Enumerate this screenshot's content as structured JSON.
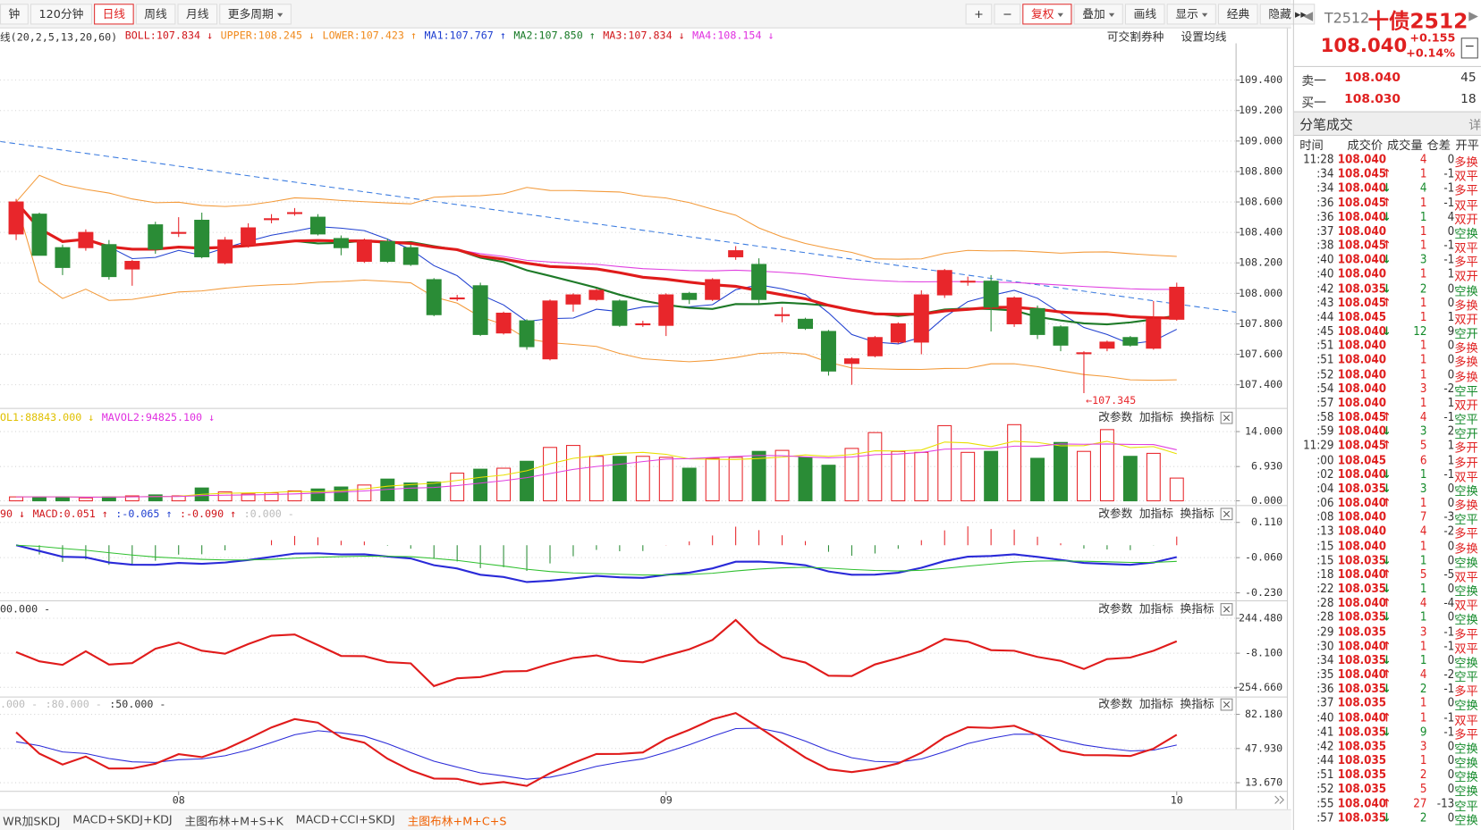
{
  "toolbar": {
    "left": [
      {
        "label": "钟"
      },
      {
        "label": "120分钟"
      },
      {
        "label": "日线",
        "active": true
      },
      {
        "label": "周线"
      },
      {
        "label": "月线"
      },
      {
        "label": "更多周期",
        "menu": true
      }
    ],
    "right": [
      {
        "label": "+"
      },
      {
        "label": "−"
      },
      {
        "label": "复权",
        "menu": true,
        "active": true
      },
      {
        "label": "叠加",
        "menu": true
      },
      {
        "label": "画线"
      },
      {
        "label": "显示",
        "menu": true
      },
      {
        "label": "经典"
      },
      {
        "label": "隐藏 ▸▸"
      }
    ]
  },
  "info": {
    "items": [
      {
        "text": "线(20,2,5,13,20,60)",
        "color": "#333333"
      },
      {
        "text": "BOLL:107.834 ↓",
        "color": "#d0161b"
      },
      {
        "text": "UPPER:108.245 ↓",
        "color": "#f08a1c"
      },
      {
        "text": "LOWER:107.423 ↑",
        "color": "#f08a1c"
      },
      {
        "text": "MA1:107.767 ↑",
        "color": "#1f3fd0"
      },
      {
        "text": "MA2:107.850 ↑",
        "color": "#177a26"
      },
      {
        "text": "MA3:107.834 ↓",
        "color": "#d0161b"
      },
      {
        "text": "MA4:108.154 ↓",
        "color": "#e030e0"
      }
    ],
    "right": [
      "可交割券种",
      "设置均线"
    ]
  },
  "chart_data": {
    "type": "candlestick",
    "ylim": [
      107.251,
      109.641
    ],
    "yticks": [
      {
        "value": 107.4,
        "label": "107.400"
      },
      {
        "value": 107.6,
        "label": "107.600"
      },
      {
        "value": 107.8,
        "label": "107.800"
      },
      {
        "value": 108.0,
        "label": "108.000"
      },
      {
        "value": 108.2,
        "label": "108.200"
      },
      {
        "value": 108.4,
        "label": "108.400"
      },
      {
        "value": 108.6,
        "label": "108.600"
      },
      {
        "value": 108.8,
        "label": "108.800"
      },
      {
        "value": 109.0,
        "label": "109.000"
      },
      {
        "value": 109.2,
        "label": "109.200"
      },
      {
        "value": 109.4,
        "label": "109.400"
      }
    ],
    "candles": [
      [
        108.39,
        108.62,
        108.35,
        108.6
      ],
      [
        108.52,
        108.53,
        108.25,
        108.25
      ],
      [
        108.3,
        108.32,
        108.12,
        108.17
      ],
      [
        108.3,
        108.42,
        108.28,
        108.4
      ],
      [
        108.32,
        108.35,
        108.09,
        108.11
      ],
      [
        108.16,
        108.22,
        108.05,
        108.21
      ],
      [
        108.45,
        108.47,
        108.26,
        108.29
      ],
      [
        108.4,
        108.5,
        108.37,
        108.4
      ],
      [
        108.48,
        108.53,
        108.23,
        108.24
      ],
      [
        108.2,
        108.37,
        108.19,
        108.35
      ],
      [
        108.32,
        108.46,
        108.3,
        108.43
      ],
      [
        108.49,
        108.52,
        108.46,
        108.49
      ],
      [
        108.53,
        108.56,
        108.51,
        108.53
      ],
      [
        108.5,
        108.52,
        108.38,
        108.39
      ],
      [
        108.36,
        108.38,
        108.25,
        108.3
      ],
      [
        108.21,
        108.36,
        108.2,
        108.35
      ],
      [
        108.34,
        108.36,
        108.2,
        108.21
      ],
      [
        108.3,
        108.32,
        108.18,
        108.19
      ],
      [
        108.09,
        108.1,
        107.85,
        107.86
      ],
      [
        107.97,
        107.99,
        107.95,
        107.97
      ],
      [
        108.05,
        108.07,
        107.72,
        107.73
      ],
      [
        107.74,
        107.88,
        107.73,
        107.87
      ],
      [
        107.82,
        107.83,
        107.63,
        107.65
      ],
      [
        107.57,
        107.96,
        107.56,
        107.95
      ],
      [
        107.93,
        108.0,
        107.88,
        107.99
      ],
      [
        107.96,
        108.03,
        107.95,
        108.02
      ],
      [
        107.95,
        107.96,
        107.78,
        107.79
      ],
      [
        107.8,
        107.82,
        107.78,
        107.8
      ],
      [
        107.79,
        108.0,
        107.72,
        107.99
      ],
      [
        108.0,
        108.01,
        107.93,
        107.96
      ],
      [
        107.96,
        108.1,
        107.95,
        108.09
      ],
      [
        108.24,
        108.31,
        108.22,
        108.28
      ],
      [
        108.19,
        108.23,
        107.93,
        107.96
      ],
      [
        107.86,
        107.91,
        107.81,
        107.86
      ],
      [
        107.83,
        107.84,
        107.76,
        107.77
      ],
      [
        107.75,
        107.76,
        107.46,
        107.49
      ],
      [
        107.54,
        107.58,
        107.4,
        107.57
      ],
      [
        107.59,
        107.72,
        107.58,
        107.71
      ],
      [
        107.68,
        107.81,
        107.67,
        107.8
      ],
      [
        107.68,
        108.02,
        107.6,
        107.99
      ],
      [
        107.99,
        108.16,
        107.97,
        108.15
      ],
      [
        108.08,
        108.11,
        108.05,
        108.08
      ],
      [
        108.08,
        108.12,
        107.75,
        107.91
      ],
      [
        107.8,
        107.98,
        107.78,
        107.97
      ],
      [
        107.9,
        107.92,
        107.7,
        107.73
      ],
      [
        107.78,
        107.79,
        107.62,
        107.66
      ],
      [
        107.61,
        107.62,
        107.345,
        107.61
      ],
      [
        107.64,
        107.69,
        107.62,
        107.68
      ],
      [
        107.71,
        107.72,
        107.65,
        107.66
      ],
      [
        107.64,
        107.95,
        107.63,
        107.83
      ],
      [
        107.83,
        108.07,
        107.82,
        108.04
      ]
    ],
    "up_color": "#e8262b",
    "down_color": "#2a8c36",
    "annotation": {
      "index": 46,
      "text": "←107.345"
    },
    "xticks": [
      {
        "value": 7,
        "label": "08"
      },
      {
        "value": 28,
        "label": "09"
      },
      {
        "value": 50,
        "label": "10"
      }
    ],
    "pane_buttons": [
      "改参数",
      "加指标",
      "换指标"
    ],
    "volume": {
      "header": [
        {
          "text": "OL1:88843.000 ↓",
          "color": "#e0c000"
        },
        {
          "text": "MAVOL2:94825.100 ↓",
          "color": "#e030e0"
        }
      ],
      "ylim": [
        0,
        18.5
      ],
      "yticks": [
        {
          "value": 0,
          "label": "0.000"
        },
        {
          "value": 6.93,
          "label": "6.930"
        },
        {
          "value": 14,
          "label": "14.000"
        }
      ],
      "values": [
        0.8,
        0.8,
        0.8,
        0.6,
        0.8,
        1,
        1.2,
        1,
        2.6,
        1.8,
        1.4,
        1.6,
        2,
        2.4,
        2.8,
        3.2,
        4.4,
        3.6,
        3.8,
        5.6,
        6.4,
        6.6,
        8,
        10.8,
        11.2,
        9,
        9,
        9,
        8.8,
        6.6,
        8.6,
        8.8,
        10,
        10.2,
        8.8,
        7.2,
        10.6,
        13.8,
        10,
        9.8,
        15.2,
        9.8,
        10,
        15.4,
        8.6,
        11.8,
        10,
        14.4,
        9,
        9.6,
        4.6
      ]
    },
    "macd": {
      "header": [
        {
          "text": "90 ↓",
          "color": "#d0161b"
        },
        {
          "text": "MACD:0.051 ↑",
          "color": "#d0161b"
        },
        {
          "text": ":-0.065 ↑",
          "color": "#1f3fd0"
        },
        {
          "text": ":-0.090 ↑",
          "color": "#d0161b"
        },
        {
          "text": ":0.000 -",
          "color": "#bbbbbb"
        }
      ],
      "ylim": [
        -0.264,
        0.187
      ],
      "yticks": [
        {
          "value": -0.23,
          "label": "-0.230"
        },
        {
          "value": -0.06,
          "label": "-0.060"
        },
        {
          "value": 0.11,
          "label": "0.110"
        }
      ]
    },
    "cci": {
      "header": [
        {
          "text": "00.000 -",
          "color": "#333333"
        }
      ],
      "ylim": [
        -318,
        364
      ],
      "yticks": [
        {
          "value": -254.66,
          "label": "-254.660"
        },
        {
          "value": -8.1,
          "label": "-8.100"
        },
        {
          "value": 244.48,
          "label": "244.480"
        }
      ]
    },
    "kdj": {
      "header": [
        {
          "text": ".000 -",
          "color": "#bbbbbb"
        },
        {
          "text": ":80.000 -",
          "color": "#bbbbbb"
        },
        {
          "text": ":50.000 -",
          "color": "#333333"
        }
      ],
      "ylim": [
        5.95,
        98.6
      ],
      "yticks": [
        {
          "value": 13.67,
          "label": "13.670"
        },
        {
          "value": 47.93,
          "label": "47.930"
        },
        {
          "value": 82.18,
          "label": "82.180"
        }
      ]
    },
    "tabs": [
      {
        "label": "WR加SKDJ"
      },
      {
        "label": "MACD+SKDJ+KDJ"
      },
      {
        "label": "主图布林+M+S+K"
      },
      {
        "label": "MACD+CCI+SKDJ"
      },
      {
        "label": "主图布林+M+C+S",
        "active": true
      }
    ]
  },
  "quote": {
    "code": "T2512",
    "name": "十债2512",
    "price": "108.040",
    "change": "+0.155",
    "pct": "+0.14%",
    "book": [
      {
        "side": "卖一",
        "price": "108.040",
        "vol": 45
      },
      {
        "side": "买一",
        "price": "108.030",
        "vol": 18
      }
    ],
    "ticks_title": "分笔成交",
    "detail": "详",
    "columns": [
      "时间",
      "成交价",
      "成交量",
      "仓差",
      "开平"
    ],
    "rows": [
      [
        "11:28",
        "108.040",
        null,
        4,
        0,
        "多换"
      ],
      [
        ":34",
        "108.045",
        "↑",
        1,
        -1,
        "双平"
      ],
      [
        ":34",
        "108.040",
        "↓",
        4,
        -1,
        "多平"
      ],
      [
        ":36",
        "108.045",
        "↑",
        1,
        -1,
        "双平"
      ],
      [
        ":36",
        "108.040",
        "↓",
        1,
        4,
        "双开"
      ],
      [
        ":37",
        "108.040",
        null,
        1,
        0,
        "空换"
      ],
      [
        ":38",
        "108.045",
        "↑",
        1,
        -1,
        "双平"
      ],
      [
        ":40",
        "108.040",
        "↓",
        3,
        -1,
        "多平"
      ],
      [
        ":40",
        "108.040",
        null,
        1,
        1,
        "双开"
      ],
      [
        ":42",
        "108.035",
        "↓",
        2,
        0,
        "空换"
      ],
      [
        ":43",
        "108.045",
        "↑",
        1,
        0,
        "多换"
      ],
      [
        ":44",
        "108.045",
        null,
        1,
        1,
        "双开"
      ],
      [
        ":45",
        "108.040",
        "↓",
        12,
        9,
        "空开"
      ],
      [
        ":51",
        "108.040",
        null,
        1,
        0,
        "多换"
      ],
      [
        ":51",
        "108.040",
        null,
        1,
        0,
        "多换"
      ],
      [
        ":52",
        "108.040",
        null,
        1,
        0,
        "多换"
      ],
      [
        ":54",
        "108.040",
        null,
        3,
        -2,
        "空平"
      ],
      [
        ":57",
        "108.040",
        null,
        1,
        1,
        "双开"
      ],
      [
        ":58",
        "108.045",
        "↑",
        4,
        -1,
        "空平"
      ],
      [
        ":59",
        "108.040",
        "↓",
        3,
        2,
        "空开"
      ],
      [
        "11:29",
        "108.045",
        "↑",
        5,
        1,
        "多开"
      ],
      [
        ":00",
        "108.045",
        null,
        6,
        1,
        "多开"
      ],
      [
        ":02",
        "108.040",
        "↓",
        1,
        -1,
        "双平"
      ],
      [
        ":04",
        "108.035",
        "↓",
        3,
        0,
        "空换"
      ],
      [
        ":06",
        "108.040",
        "↑",
        1,
        0,
        "多换"
      ],
      [
        ":08",
        "108.040",
        null,
        7,
        -3,
        "空平"
      ],
      [
        ":13",
        "108.040",
        null,
        4,
        -2,
        "多平"
      ],
      [
        ":15",
        "108.040",
        null,
        1,
        0,
        "多换"
      ],
      [
        ":15",
        "108.035",
        "↓",
        1,
        0,
        "空换"
      ],
      [
        ":18",
        "108.040",
        "↑",
        5,
        -5,
        "双平"
      ],
      [
        ":22",
        "108.035",
        "↓",
        1,
        0,
        "空换"
      ],
      [
        ":28",
        "108.040",
        "↑",
        4,
        -4,
        "双平"
      ],
      [
        ":28",
        "108.035",
        "↓",
        1,
        0,
        "空换"
      ],
      [
        ":29",
        "108.035",
        null,
        3,
        -1,
        "多平"
      ],
      [
        ":30",
        "108.040",
        "↑",
        1,
        -1,
        "双平"
      ],
      [
        ":34",
        "108.035",
        "↓",
        1,
        0,
        "空换"
      ],
      [
        ":35",
        "108.040",
        "↑",
        4,
        -2,
        "空平"
      ],
      [
        ":36",
        "108.035",
        "↓",
        2,
        -1,
        "多平"
      ],
      [
        ":37",
        "108.035",
        null,
        1,
        0,
        "空换"
      ],
      [
        ":40",
        "108.040",
        "↑",
        1,
        -1,
        "双平"
      ],
      [
        ":41",
        "108.035",
        "↓",
        9,
        -1,
        "多平"
      ],
      [
        ":42",
        "108.035",
        null,
        3,
        0,
        "空换"
      ],
      [
        ":44",
        "108.035",
        null,
        1,
        0,
        "空换"
      ],
      [
        ":51",
        "108.035",
        null,
        2,
        0,
        "空换"
      ],
      [
        ":52",
        "108.035",
        null,
        5,
        0,
        "空换"
      ],
      [
        ":55",
        "108.040",
        "↑",
        27,
        -13,
        "空平"
      ],
      [
        ":57",
        "108.035",
        "↓",
        2,
        0,
        "空换"
      ]
    ]
  }
}
